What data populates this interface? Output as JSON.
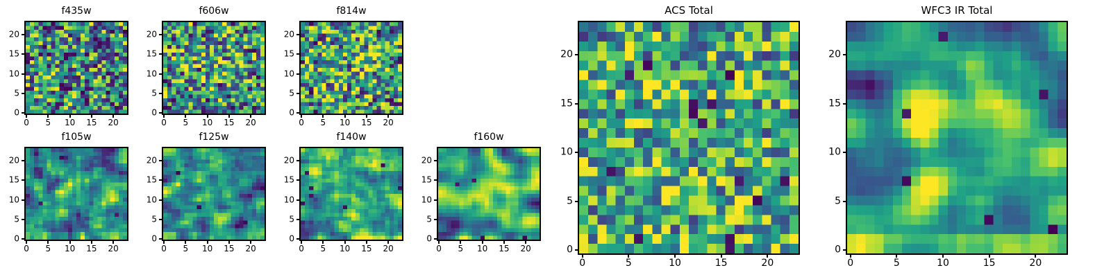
{
  "figure": {
    "background": "#ffffff",
    "text_color": "#000000"
  },
  "chart_data": {
    "type": "heatmap",
    "colormap": "viridis",
    "colormap_stops": [
      "#440154",
      "#46327e",
      "#365c8d",
      "#277f8e",
      "#1fa187",
      "#4ac16d",
      "#a0da39",
      "#fde725"
    ],
    "grid_size": 24,
    "xlim": [
      -0.5,
      23.5
    ],
    "ylim": [
      -0.5,
      23.5
    ],
    "xticks": [
      0,
      5,
      10,
      15,
      20
    ],
    "yticks": [
      0,
      5,
      10,
      15,
      20
    ],
    "panels": [
      {
        "title": "f435w",
        "n": 24,
        "seed": 11,
        "smooth": 0,
        "center": 0.0,
        "cx": 11.5,
        "cy": 11.5,
        "sigma": 6,
        "gain": 1.0,
        "offset": 0.0,
        "dark_spots": 6,
        "bottom_rows": 0,
        "bottom_boost": 0.0
      },
      {
        "title": "f606w",
        "n": 24,
        "seed": 22,
        "smooth": 0,
        "center": 0.12,
        "cx": 11.5,
        "cy": 11.5,
        "sigma": 6,
        "gain": 1.0,
        "offset": 0.0,
        "dark_spots": 5,
        "bottom_rows": 0,
        "bottom_boost": 0.0
      },
      {
        "title": "f814w",
        "n": 24,
        "seed": 33,
        "smooth": 0,
        "center": 0.15,
        "cx": 11.5,
        "cy": 11.5,
        "sigma": 6,
        "gain": 1.0,
        "offset": 0.0,
        "dark_spots": 6,
        "bottom_rows": 0,
        "bottom_boost": 0.0
      },
      {
        "title": "f105w",
        "n": 24,
        "seed": 44,
        "smooth": 1,
        "center": 0.15,
        "cx": 11.5,
        "cy": 11.5,
        "sigma": 6,
        "gain": 1.0,
        "offset": 0.0,
        "dark_spots": 3,
        "bottom_rows": 2,
        "bottom_boost": 0.15
      },
      {
        "title": "f125w",
        "n": 24,
        "seed": 55,
        "smooth": 1,
        "center": 0.1,
        "cx": 11.5,
        "cy": 11.5,
        "sigma": 6,
        "gain": 1.0,
        "offset": 0.0,
        "dark_spots": 3,
        "bottom_rows": 2,
        "bottom_boost": 0.2
      },
      {
        "title": "f140w",
        "n": 24,
        "seed": 66,
        "smooth": 1,
        "center": 0.1,
        "cx": 11.5,
        "cy": 11.5,
        "sigma": 6,
        "gain": 1.0,
        "offset": 0.0,
        "dark_spots": 7,
        "bottom_rows": 1,
        "bottom_boost": 0.2
      },
      {
        "title": "f160w",
        "n": 24,
        "seed": 77,
        "smooth": 2,
        "center": 0.25,
        "cx": 11.5,
        "cy": 11.5,
        "sigma": 5,
        "gain": 1.0,
        "offset": 0.0,
        "dark_spots": 4,
        "bottom_rows": 1,
        "bottom_boost": 0.2
      },
      {
        "title": "ACS Total",
        "n": 24,
        "seed": 88,
        "smooth": 0,
        "center": 0.08,
        "cx": 11.5,
        "cy": 11.5,
        "sigma": 7,
        "gain": 0.85,
        "offset": 0.15,
        "dark_spots": 14,
        "bottom_rows": 2,
        "bottom_boost": 0.1
      },
      {
        "title": "WFC3 IR Total",
        "n": 24,
        "seed": 99,
        "smooth": 2,
        "center": 0.3,
        "cx": 13.0,
        "cy": 13.0,
        "sigma": 6,
        "gain": 1.0,
        "offset": 0.0,
        "dark_spots": 6,
        "bottom_rows": 2,
        "bottom_boost": 0.3
      }
    ]
  }
}
